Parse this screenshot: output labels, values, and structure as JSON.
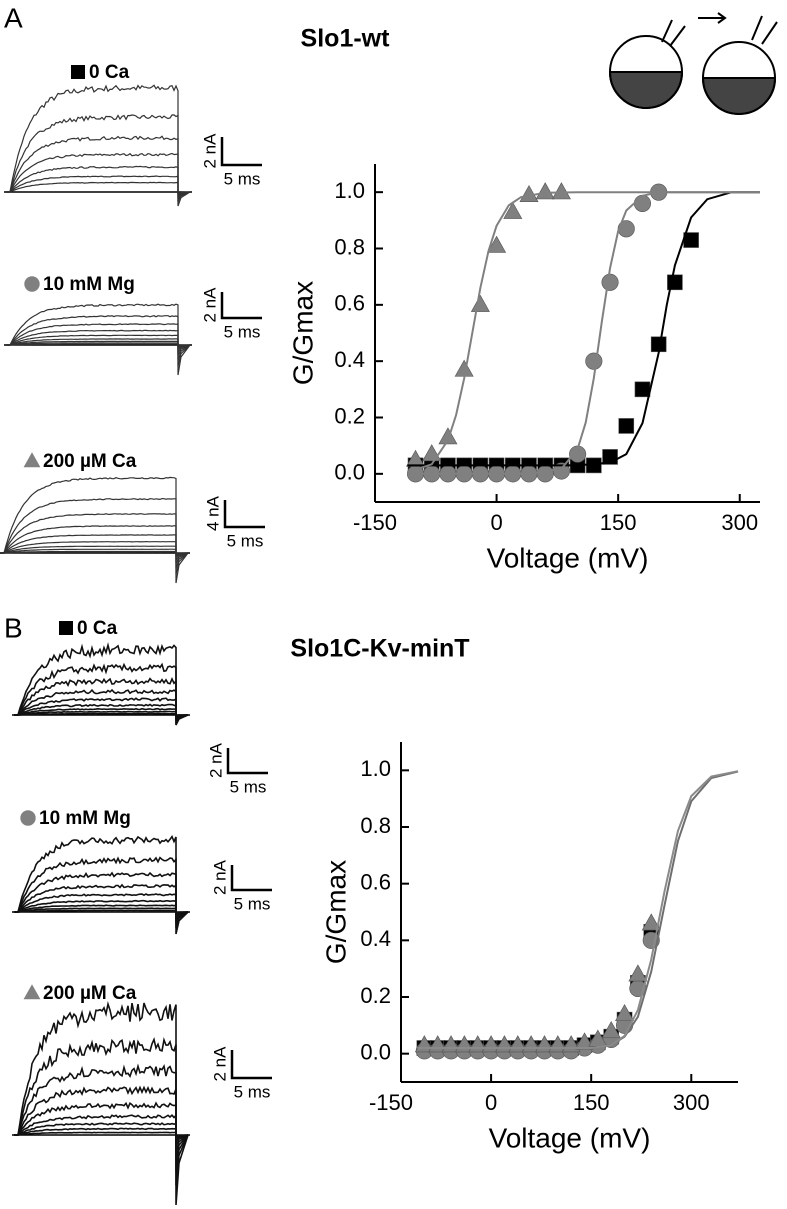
{
  "panels": [
    {
      "label": "A",
      "title": "Slo1-wt",
      "scale_bars": [
        {
          "y": "2 nA",
          "x": "5 ms"
        },
        {
          "y": "2 nA",
          "x": "5 ms"
        },
        {
          "y": "4 nA",
          "x": "5 ms"
        }
      ]
    },
    {
      "label": "B",
      "title": "Slo1C-Kv-minT",
      "scale_bars": [
        {
          "y": "2 nA",
          "x": "5 ms"
        },
        {
          "y": "2 nA",
          "x": "5 ms"
        },
        {
          "y": "2 nA",
          "x": "5 ms"
        }
      ]
    }
  ],
  "chart_data": [
    {
      "type": "scatter",
      "xlabel": "Voltage (mV)",
      "ylabel": "G/Gmax",
      "xlim": [
        -150,
        325
      ],
      "ylim": [
        -0.1,
        1.1
      ],
      "xticks": [
        -150,
        0,
        150,
        300
      ],
      "yticks": [
        {
          "value": 0,
          "label": "0.0"
        },
        0.2,
        0.4,
        0.6,
        0.8,
        {
          "value": 1,
          "label": "1.0"
        }
      ],
      "series": [
        {
          "name": "0 Ca",
          "color": "#000000",
          "marker": "square",
          "x": [
            -100,
            -80,
            -60,
            -40,
            -20,
            0,
            20,
            40,
            60,
            80,
            100,
            120,
            140,
            160,
            180,
            200,
            220,
            240
          ],
          "values": [
            0.03,
            0.03,
            0.03,
            0.03,
            0.03,
            0.03,
            0.03,
            0.03,
            0.03,
            0.03,
            0.03,
            0.03,
            0.06,
            0.17,
            0.3,
            0.46,
            0.68,
            0.83
          ]
        },
        {
          "name": "10 mM Mg",
          "color": "#808080",
          "marker": "circle",
          "x": [
            -100,
            -80,
            -60,
            -40,
            -20,
            0,
            20,
            40,
            60,
            80,
            100,
            120,
            140,
            160,
            180,
            200
          ],
          "values": [
            0,
            0,
            0,
            0,
            0,
            0,
            0,
            0,
            0,
            0.01,
            0.07,
            0.4,
            0.68,
            0.87,
            0.96,
            1.0
          ]
        },
        {
          "name": "200 µM Ca",
          "color": "#808080",
          "marker": "triangle",
          "x": [
            -100,
            -80,
            -60,
            -40,
            -20,
            0,
            20,
            40,
            60,
            80
          ],
          "values": [
            0.05,
            0.07,
            0.13,
            0.37,
            0.6,
            0.81,
            0.93,
            0.99,
            1.0,
            1.0
          ]
        }
      ],
      "fits": [
        {
          "color": "#000000",
          "x": [
            -110,
            100,
            140,
            160,
            180,
            200,
            210,
            220,
            240,
            260,
            290,
            325
          ],
          "values": [
            0.03,
            0.03,
            0.04,
            0.07,
            0.18,
            0.43,
            0.6,
            0.74,
            0.91,
            0.975,
            1.0,
            1.0
          ]
        },
        {
          "color": "#808080",
          "x": [
            -110,
            40,
            80,
            100,
            110,
            120,
            130,
            140,
            150,
            160,
            180,
            200,
            240,
            325
          ],
          "values": [
            0,
            0,
            0.018,
            0.088,
            0.182,
            0.339,
            0.542,
            0.731,
            0.862,
            0.935,
            0.987,
            1.0,
            1.0,
            1.0
          ]
        },
        {
          "color": "#808080",
          "x": [
            -110,
            -80,
            -60,
            -50,
            -40,
            -30,
            -20,
            -10,
            0,
            15,
            30,
            60,
            100,
            325
          ],
          "values": [
            0.005,
            0.034,
            0.119,
            0.209,
            0.339,
            0.5,
            0.661,
            0.791,
            0.881,
            0.953,
            0.982,
            0.998,
            1.0,
            1.0
          ]
        }
      ]
    },
    {
      "type": "scatter",
      "xlabel": "Voltage (mV)",
      "ylabel": "G/Gmax",
      "xlim": [
        -135,
        370
      ],
      "ylim": [
        -0.1,
        1.1
      ],
      "xticks": [
        -150,
        0,
        150,
        300
      ],
      "yticks": [
        {
          "value": 0,
          "label": "0.0"
        },
        0.2,
        0.4,
        0.6,
        0.8,
        {
          "value": 1,
          "label": "1.0"
        }
      ],
      "series": [
        {
          "name": "0 Ca",
          "color": "#000000",
          "marker": "square",
          "x": [
            -100,
            -80,
            -60,
            -40,
            -20,
            0,
            20,
            40,
            60,
            80,
            100,
            120,
            140,
            160,
            180,
            200,
            220,
            240
          ],
          "values": [
            0.02,
            0.02,
            0.02,
            0.02,
            0.02,
            0.02,
            0.02,
            0.02,
            0.02,
            0.02,
            0.02,
            0.02,
            0.03,
            0.04,
            0.06,
            0.12,
            0.25,
            0.43
          ]
        },
        {
          "name": "10 mM Mg",
          "color": "#808080",
          "marker": "circle",
          "x": [
            -100,
            -80,
            -60,
            -40,
            -20,
            0,
            20,
            40,
            60,
            80,
            100,
            120,
            140,
            160,
            180,
            200,
            220,
            240
          ],
          "values": [
            0.01,
            0.01,
            0.01,
            0.01,
            0.01,
            0.01,
            0.01,
            0.01,
            0.01,
            0.01,
            0.01,
            0.01,
            0.02,
            0.03,
            0.05,
            0.1,
            0.23,
            0.4
          ]
        },
        {
          "name": "200 µM Ca",
          "color": "#808080",
          "marker": "triangle",
          "x": [
            -100,
            -80,
            -60,
            -40,
            -20,
            0,
            20,
            40,
            60,
            80,
            100,
            120,
            140,
            160,
            180,
            200,
            220,
            240
          ],
          "values": [
            0.03,
            0.03,
            0.03,
            0.03,
            0.03,
            0.03,
            0.03,
            0.03,
            0.03,
            0.03,
            0.03,
            0.03,
            0.04,
            0.05,
            0.08,
            0.14,
            0.28,
            0.46
          ]
        }
      ],
      "fits": [
        {
          "color": "#6e6e6e",
          "x": [
            -110,
            100,
            150,
            180,
            200,
            220,
            240,
            260,
            280,
            300,
            330,
            370
          ],
          "values": [
            0.02,
            0.02,
            0.02,
            0.03,
            0.06,
            0.13,
            0.289,
            0.525,
            0.75,
            0.891,
            0.973,
            0.996
          ]
        },
        {
          "color": "#8a8a8a",
          "x": [
            -110,
            100,
            150,
            180,
            200,
            220,
            240,
            260,
            280,
            300,
            330,
            370
          ],
          "values": [
            0.02,
            0.02,
            0.02,
            0.03,
            0.063,
            0.154,
            0.332,
            0.574,
            0.786,
            0.909,
            0.978,
            0.997
          ]
        }
      ]
    }
  ]
}
